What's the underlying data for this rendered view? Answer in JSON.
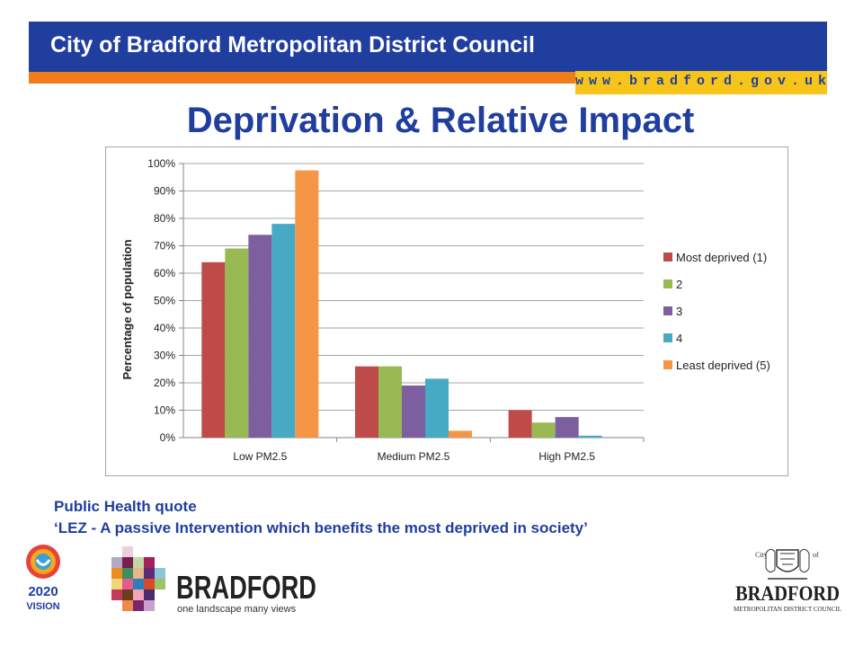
{
  "header": {
    "title": "City of Bradford Metropolitan District Council",
    "url": "www.bradford.gov.uk"
  },
  "slide": {
    "title": "Deprivation & Relative Impact"
  },
  "quote": {
    "line1": "Public Health quote",
    "line2": "‘LEZ - A passive Intervention which benefits the most deprived in society’"
  },
  "logos": {
    "vision": "2020 VISION",
    "bradford_word": "BRADFORD",
    "bradford_tagline": "one landscape many views",
    "council_city": "City of",
    "council_name": "BRADFORD",
    "council_sub": "METROPOLITAN DISTRICT COUNCIL"
  },
  "colors": {
    "brand_blue": "#1f3e9e",
    "brand_orange": "#f07d1a",
    "brand_yellow": "#f7c419"
  },
  "chart_data": {
    "type": "bar",
    "title": "",
    "xlabel": "",
    "ylabel": "Percentage of population",
    "ylim": [
      0,
      100
    ],
    "yticks": [
      "0%",
      "10%",
      "20%",
      "30%",
      "40%",
      "50%",
      "60%",
      "70%",
      "80%",
      "90%",
      "100%"
    ],
    "categories": [
      "Low PM2.5",
      "Medium PM2.5",
      "High PM2.5"
    ],
    "grid": true,
    "legend_position": "right",
    "series": [
      {
        "name": "Most deprived (1)",
        "color": "#be4b48",
        "values": [
          64,
          26,
          10
        ]
      },
      {
        "name": "2",
        "color": "#98b954",
        "values": [
          69,
          26,
          5.5
        ]
      },
      {
        "name": "3",
        "color": "#7d5fa0",
        "values": [
          74,
          19,
          7.5
        ]
      },
      {
        "name": "4",
        "color": "#46aac5",
        "values": [
          78,
          21.5,
          0.7
        ]
      },
      {
        "name": "Least deprived (5)",
        "color": "#f59646",
        "values": [
          97.5,
          2.5,
          0
        ]
      }
    ]
  }
}
